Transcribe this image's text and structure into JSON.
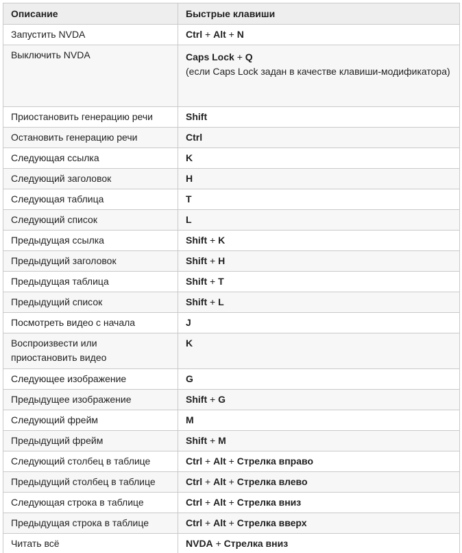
{
  "table": {
    "headers": {
      "description": "Описание",
      "shortcut": "Быстрые клавиши"
    },
    "rows": [
      {
        "desc": "Запустить NVDA",
        "keys": [
          "Ctrl",
          "Alt",
          "N"
        ]
      },
      {
        "desc": "Выключить NVDA",
        "keys": [
          "Caps Lock",
          "Q"
        ],
        "note": "(если Caps Lock задан в качестве клавиши-модификатора)"
      },
      {
        "desc": "Приостановить генерацию речи",
        "keys": [
          "Shift"
        ]
      },
      {
        "desc": "Остановить генерацию речи",
        "keys": [
          "Ctrl"
        ]
      },
      {
        "desc": "Следующая ссылка",
        "keys": [
          "K"
        ]
      },
      {
        "desc": "Следующий заголовок",
        "keys": [
          "H"
        ]
      },
      {
        "desc": "Следующая таблица",
        "keys": [
          "T"
        ]
      },
      {
        "desc": "Следующий список",
        "keys": [
          "L"
        ]
      },
      {
        "desc": "Предыдущая ссылка",
        "keys": [
          "Shift",
          "K"
        ]
      },
      {
        "desc": "Предыдущий заголовок",
        "keys": [
          "Shift",
          "H"
        ]
      },
      {
        "desc": "Предыдущая таблица",
        "keys": [
          "Shift",
          "T"
        ]
      },
      {
        "desc": "Предыдущий список",
        "keys": [
          "Shift",
          "L"
        ]
      },
      {
        "desc": "Посмотреть видео с начала",
        "keys": [
          "J"
        ]
      },
      {
        "desc": "Воспроизвести или приостановить видео",
        "keys": [
          "K"
        ]
      },
      {
        "desc": "Следующее изображение",
        "keys": [
          "G"
        ]
      },
      {
        "desc": "Предыдущее изображение",
        "keys": [
          "Shift",
          "G"
        ]
      },
      {
        "desc": "Следующий фрейм",
        "keys": [
          "M"
        ]
      },
      {
        "desc": "Предыдущий фрейм",
        "keys": [
          "Shift",
          "M"
        ]
      },
      {
        "desc": "Следующий столбец в таблице",
        "keys": [
          "Ctrl",
          "Alt",
          "Стрелка вправо"
        ]
      },
      {
        "desc": "Предыдущий столбец в таблице",
        "keys": [
          "Ctrl",
          "Alt",
          "Стрелка влево"
        ]
      },
      {
        "desc": "Следующая строка в таблице",
        "keys": [
          "Ctrl",
          "Alt",
          "Стрелка вниз"
        ]
      },
      {
        "desc": "Предыдущая строка в таблице",
        "keys": [
          "Ctrl",
          "Alt",
          "Стрелка вверх"
        ]
      },
      {
        "desc": "Читать всё",
        "keys": [
          "NVDA",
          "Стрелка вниз"
        ]
      }
    ],
    "separator": "+"
  }
}
